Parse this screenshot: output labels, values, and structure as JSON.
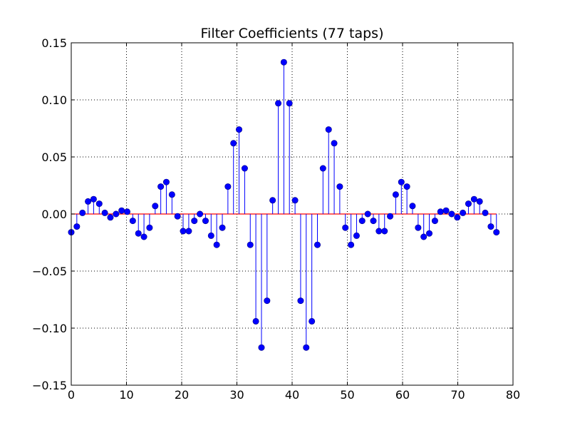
{
  "chart_data": {
    "type": "stem",
    "title": "Filter Coefficients (77 taps)",
    "xlabel": "",
    "ylabel": "",
    "xlim": [
      0,
      80
    ],
    "ylim": [
      -0.15,
      0.15
    ],
    "grid": true,
    "x_ticks": [
      0,
      10,
      20,
      30,
      40,
      50,
      60,
      70,
      80
    ],
    "y_ticks": [
      -0.15,
      -0.1,
      -0.05,
      0.0,
      0.05,
      0.1,
      0.15
    ],
    "x_tick_labels": [
      "0",
      "10",
      "20",
      "30",
      "40",
      "50",
      "60",
      "70",
      "80"
    ],
    "y_tick_labels": [
      "−0.15",
      "−0.10",
      "−0.05",
      "0.00",
      "0.05",
      "0.10",
      "0.15"
    ],
    "x": [
      0.0,
      1.01,
      2.03,
      3.04,
      4.05,
      5.07,
      6.08,
      7.09,
      8.11,
      9.12,
      10.13,
      11.14,
      12.16,
      13.17,
      14.18,
      15.2,
      16.21,
      17.22,
      18.24,
      19.25,
      20.26,
      21.28,
      22.29,
      23.3,
      24.32,
      25.33,
      26.34,
      27.36,
      28.37,
      29.38,
      30.39,
      31.41,
      32.42,
      33.43,
      34.45,
      35.46,
      36.47,
      37.49,
      38.5,
      39.51,
      40.53,
      41.54,
      42.55,
      43.57,
      44.58,
      45.59,
      46.61,
      47.62,
      48.63,
      49.64,
      50.66,
      51.67,
      52.68,
      53.7,
      54.71,
      55.72,
      56.74,
      57.75,
      58.76,
      59.78,
      60.79,
      61.8,
      62.82,
      63.83,
      64.84,
      65.86,
      66.87,
      67.88,
      68.89,
      69.91,
      70.92,
      71.93,
      72.95,
      73.96,
      74.97,
      75.99,
      77.0
    ],
    "values": [
      -0.016,
      -0.011,
      0.001,
      0.011,
      0.013,
      0.009,
      0.001,
      -0.003,
      0.0,
      0.003,
      0.002,
      -0.006,
      -0.017,
      -0.02,
      -0.012,
      0.007,
      0.024,
      0.028,
      0.017,
      -0.002,
      -0.015,
      -0.015,
      -0.006,
      0.0,
      -0.006,
      -0.019,
      -0.027,
      -0.012,
      0.024,
      0.062,
      0.074,
      0.04,
      -0.027,
      -0.094,
      -0.117,
      -0.076,
      0.012,
      0.097,
      0.133,
      0.097,
      0.012,
      -0.076,
      -0.117,
      -0.094,
      -0.027,
      0.04,
      0.074,
      0.062,
      0.024,
      -0.012,
      -0.027,
      -0.019,
      -0.006,
      0.0,
      -0.006,
      -0.015,
      -0.015,
      -0.002,
      0.017,
      0.028,
      0.024,
      0.007,
      -0.012,
      -0.02,
      -0.017,
      -0.006,
      0.002,
      0.003,
      0.0,
      -0.003,
      0.001,
      0.009,
      0.013,
      0.011,
      0.001,
      -0.011,
      -0.016
    ],
    "colors": {
      "stem": "#0000ff",
      "marker": "#0000ff",
      "baseline": "#ff0000",
      "grid": "#000000",
      "axes": "#000000"
    }
  }
}
